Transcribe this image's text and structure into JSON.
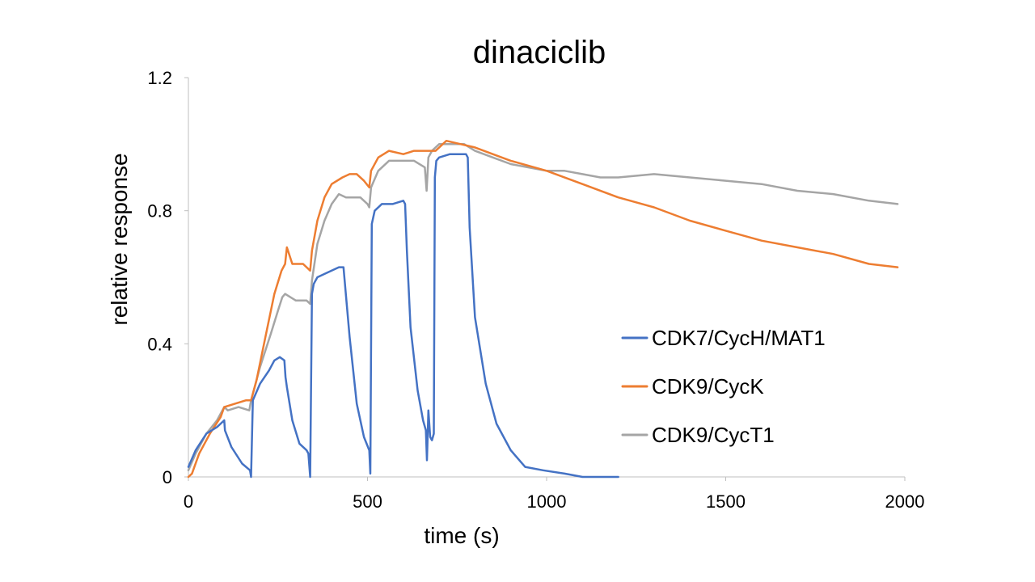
{
  "chart_data": {
    "type": "line",
    "title": "dinaciclib",
    "xlabel": "time (s)",
    "ylabel": "relative response",
    "xlim": [
      0,
      2000
    ],
    "ylim": [
      0,
      1.2
    ],
    "x_ticks": [
      0,
      500,
      1000,
      1500,
      2000
    ],
    "y_ticks": [
      0,
      0.4,
      0.8,
      1.2
    ],
    "x_tick_labels": [
      "0",
      "500",
      "1000",
      "1500",
      "2000"
    ],
    "y_tick_labels": [
      "0",
      "0.4",
      "0.8",
      "1.2"
    ],
    "grid": false,
    "legend_position": "right",
    "series": [
      {
        "name": "CDK7/CycH/MAT1",
        "color": "#4472C4",
        "x": [
          0,
          20,
          50,
          80,
          100,
          102,
          120,
          150,
          172,
          175,
          180,
          200,
          225,
          240,
          255,
          268,
          271,
          275,
          290,
          310,
          330,
          335,
          340,
          345,
          350,
          360,
          380,
          400,
          420,
          433,
          437,
          450,
          470,
          490,
          505,
          508,
          512,
          520,
          540,
          570,
          600,
          605,
          610,
          620,
          640,
          655,
          663,
          666,
          670,
          675,
          680,
          685,
          688,
          692,
          700,
          730,
          760,
          775,
          780,
          785,
          800,
          830,
          860,
          900,
          940,
          990,
          1050,
          1100,
          1200
        ],
        "y": [
          0.03,
          0.08,
          0.13,
          0.15,
          0.17,
          0.14,
          0.09,
          0.04,
          0.02,
          0.0,
          0.23,
          0.28,
          0.32,
          0.35,
          0.36,
          0.35,
          0.3,
          0.27,
          0.17,
          0.1,
          0.08,
          0.07,
          0.0,
          0.55,
          0.58,
          0.6,
          0.61,
          0.62,
          0.63,
          0.63,
          0.58,
          0.42,
          0.22,
          0.12,
          0.08,
          0.01,
          0.76,
          0.8,
          0.82,
          0.82,
          0.83,
          0.82,
          0.68,
          0.45,
          0.26,
          0.17,
          0.14,
          0.05,
          0.2,
          0.12,
          0.11,
          0.13,
          0.9,
          0.95,
          0.96,
          0.97,
          0.97,
          0.97,
          0.96,
          0.75,
          0.48,
          0.28,
          0.16,
          0.08,
          0.03,
          0.02,
          0.01,
          0.0,
          0.0
        ]
      },
      {
        "name": "CDK9/CycK",
        "color": "#ED7D31",
        "x": [
          0,
          10,
          30,
          60,
          90,
          100,
          130,
          160,
          175,
          190,
          215,
          240,
          260,
          270,
          275,
          290,
          320,
          340,
          345,
          360,
          380,
          400,
          430,
          450,
          470,
          490,
          505,
          510,
          530,
          560,
          600,
          630,
          660,
          690,
          720,
          760,
          800,
          850,
          900,
          1000,
          1100,
          1200,
          1300,
          1400,
          1500,
          1600,
          1700,
          1800,
          1900,
          1980
        ],
        "y": [
          0.0,
          0.01,
          0.07,
          0.13,
          0.18,
          0.21,
          0.22,
          0.23,
          0.23,
          0.29,
          0.42,
          0.55,
          0.62,
          0.64,
          0.69,
          0.64,
          0.64,
          0.62,
          0.68,
          0.77,
          0.84,
          0.88,
          0.9,
          0.91,
          0.91,
          0.89,
          0.87,
          0.92,
          0.96,
          0.98,
          0.97,
          0.98,
          0.98,
          0.98,
          1.01,
          1.0,
          0.99,
          0.97,
          0.95,
          0.92,
          0.88,
          0.84,
          0.81,
          0.77,
          0.74,
          0.71,
          0.69,
          0.67,
          0.64,
          0.63
        ]
      },
      {
        "name": "CDK9/CycT1",
        "color": "#A5A5A5",
        "x": [
          0,
          20,
          50,
          80,
          100,
          110,
          140,
          170,
          175,
          200,
          230,
          250,
          262,
          270,
          300,
          330,
          340,
          345,
          360,
          380,
          400,
          420,
          440,
          460,
          480,
          500,
          505,
          510,
          530,
          560,
          600,
          630,
          660,
          665,
          670,
          680,
          700,
          730,
          770,
          800,
          850,
          900,
          950,
          1000,
          1050,
          1100,
          1150,
          1200,
          1300,
          1400,
          1500,
          1600,
          1700,
          1800,
          1900,
          1980
        ],
        "y": [
          0.02,
          0.07,
          0.13,
          0.17,
          0.21,
          0.2,
          0.21,
          0.2,
          0.23,
          0.33,
          0.43,
          0.5,
          0.54,
          0.55,
          0.53,
          0.53,
          0.52,
          0.59,
          0.7,
          0.77,
          0.82,
          0.85,
          0.84,
          0.84,
          0.84,
          0.82,
          0.81,
          0.87,
          0.92,
          0.95,
          0.95,
          0.95,
          0.93,
          0.86,
          0.96,
          0.98,
          1.0,
          1.0,
          1.0,
          0.98,
          0.96,
          0.94,
          0.93,
          0.92,
          0.92,
          0.91,
          0.9,
          0.9,
          0.91,
          0.9,
          0.89,
          0.88,
          0.86,
          0.85,
          0.83,
          0.82
        ]
      }
    ]
  }
}
